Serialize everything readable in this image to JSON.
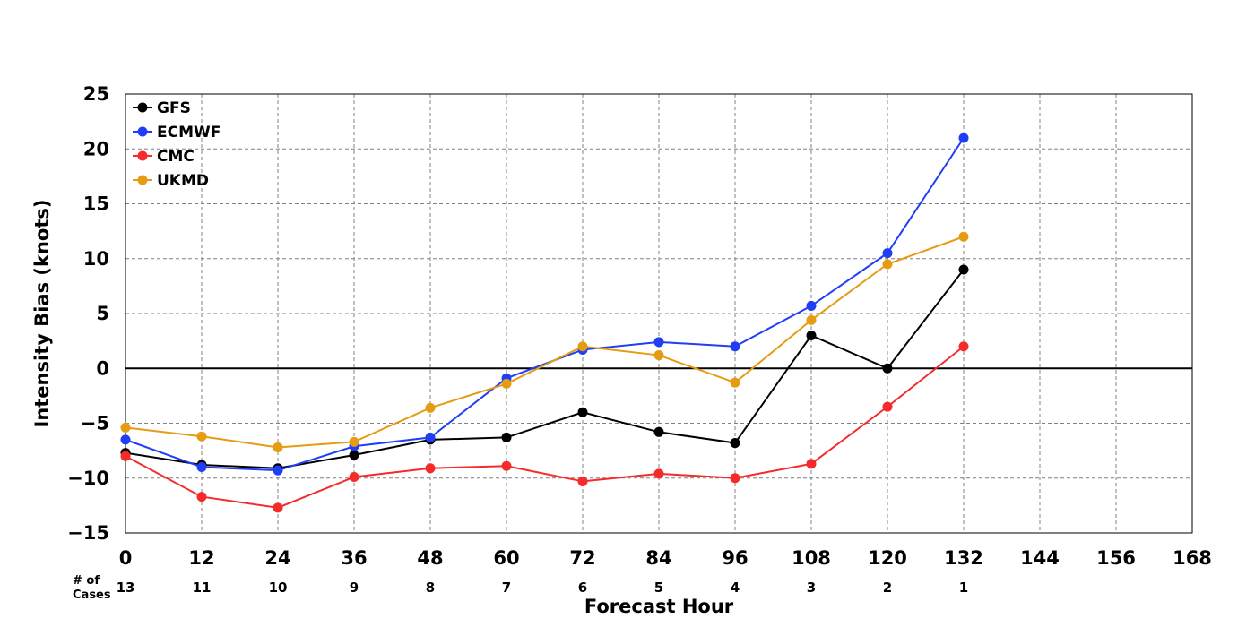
{
  "chart_data": {
    "type": "line",
    "xlabel": "Forecast Hour",
    "ylabel": "Intensity Bias (knots)",
    "xlim": [
      0,
      168
    ],
    "ylim": [
      -15,
      25
    ],
    "xticks": [
      0,
      12,
      24,
      36,
      48,
      60,
      72,
      84,
      96,
      108,
      120,
      132,
      144,
      156,
      168
    ],
    "yticks": [
      25,
      20,
      15,
      10,
      5,
      0,
      -5,
      -10,
      -15
    ],
    "ytick_labels": [
      "25",
      "20",
      "15",
      "10",
      "5",
      "0",
      "−5",
      "−10",
      "−15"
    ],
    "grid": true,
    "zero_line": true,
    "legend_position": "top-left",
    "cases_title_line1": "# of",
    "cases_title_line2": "Cases",
    "cases_x": [
      0,
      12,
      24,
      36,
      48,
      60,
      72,
      84,
      96,
      108,
      120,
      132
    ],
    "cases": [
      "13",
      "11",
      "10",
      "9",
      "8",
      "7",
      "6",
      "5",
      "4",
      "3",
      "2",
      "1"
    ],
    "x": [
      0,
      12,
      24,
      36,
      48,
      60,
      72,
      84,
      96,
      108,
      120,
      132
    ],
    "series": [
      {
        "name": "GFS",
        "color": "#000000",
        "values": [
          -7.7,
          -8.8,
          -9.1,
          -7.9,
          -6.5,
          -6.3,
          -4.0,
          -5.8,
          -6.8,
          3.0,
          0.0,
          9.0
        ]
      },
      {
        "name": "ECMWF",
        "color": "#1f3ef5",
        "values": [
          -6.5,
          -9.0,
          -9.3,
          -7.1,
          -6.3,
          -0.9,
          1.7,
          2.4,
          2.0,
          5.7,
          10.5,
          21.0
        ]
      },
      {
        "name": "CMC",
        "color": "#f52a2a",
        "values": [
          -8.0,
          -11.7,
          -12.7,
          -9.9,
          -9.1,
          -8.9,
          -10.3,
          -9.6,
          -10.0,
          -8.7,
          -3.5,
          2.0
        ]
      },
      {
        "name": "UKMD",
        "color": "#e59c12",
        "values": [
          -5.4,
          -6.2,
          -7.2,
          -6.7,
          -3.6,
          -1.4,
          2.0,
          1.2,
          -1.3,
          4.4,
          9.5,
          12.0
        ]
      }
    ]
  }
}
